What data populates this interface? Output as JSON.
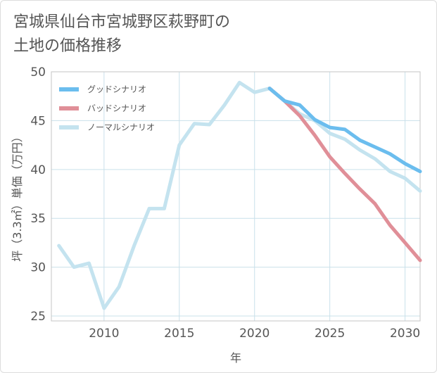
{
  "chart_data": {
    "type": "line",
    "title": "宮城県仙台市宮城野区萩野町の\n土地の価格推移",
    "xlabel": "年",
    "ylabel": "坪（3.3㎡）単価（万円）",
    "xlim": [
      2006.5,
      2031
    ],
    "ylim": [
      24.5,
      50
    ],
    "x_ticks": [
      2010,
      2015,
      2020,
      2025,
      2030
    ],
    "y_ticks": [
      25,
      30,
      35,
      40,
      45,
      50
    ],
    "grid": true,
    "legend_position": "top-left",
    "series": [
      {
        "name": "グッドシナリオ",
        "color": "#6bbdee",
        "x": [
          2021,
          2022,
          2023,
          2024,
          2025,
          2026,
          2027,
          2028,
          2029,
          2030,
          2031
        ],
        "values": [
          48.3,
          47.0,
          46.6,
          45.1,
          44.3,
          44.1,
          43.0,
          42.3,
          41.6,
          40.6,
          39.8
        ]
      },
      {
        "name": "バッドシナリオ",
        "color": "#e08f98",
        "x": [
          2021,
          2022,
          2023,
          2024,
          2025,
          2026,
          2027,
          2028,
          2029,
          2030,
          2031
        ],
        "values": [
          48.3,
          47.0,
          45.5,
          43.5,
          41.3,
          39.6,
          38.0,
          36.5,
          34.3,
          32.5,
          30.7
        ]
      },
      {
        "name": "ノーマルシナリオ",
        "color": "#c4e3ef",
        "x": [
          2007,
          2008,
          2009,
          2010,
          2011,
          2012,
          2013,
          2014,
          2015,
          2016,
          2017,
          2018,
          2019,
          2020,
          2021,
          2022,
          2023,
          2024,
          2025,
          2026,
          2027,
          2028,
          2029,
          2030,
          2031
        ],
        "values": [
          32.2,
          30.0,
          30.4,
          25.8,
          28.0,
          32.2,
          36.0,
          36.0,
          42.5,
          44.7,
          44.6,
          46.6,
          48.9,
          47.9,
          48.3,
          47.0,
          45.7,
          45.0,
          43.7,
          43.1,
          42.0,
          41.1,
          39.8,
          39.1,
          37.8
        ]
      }
    ]
  }
}
